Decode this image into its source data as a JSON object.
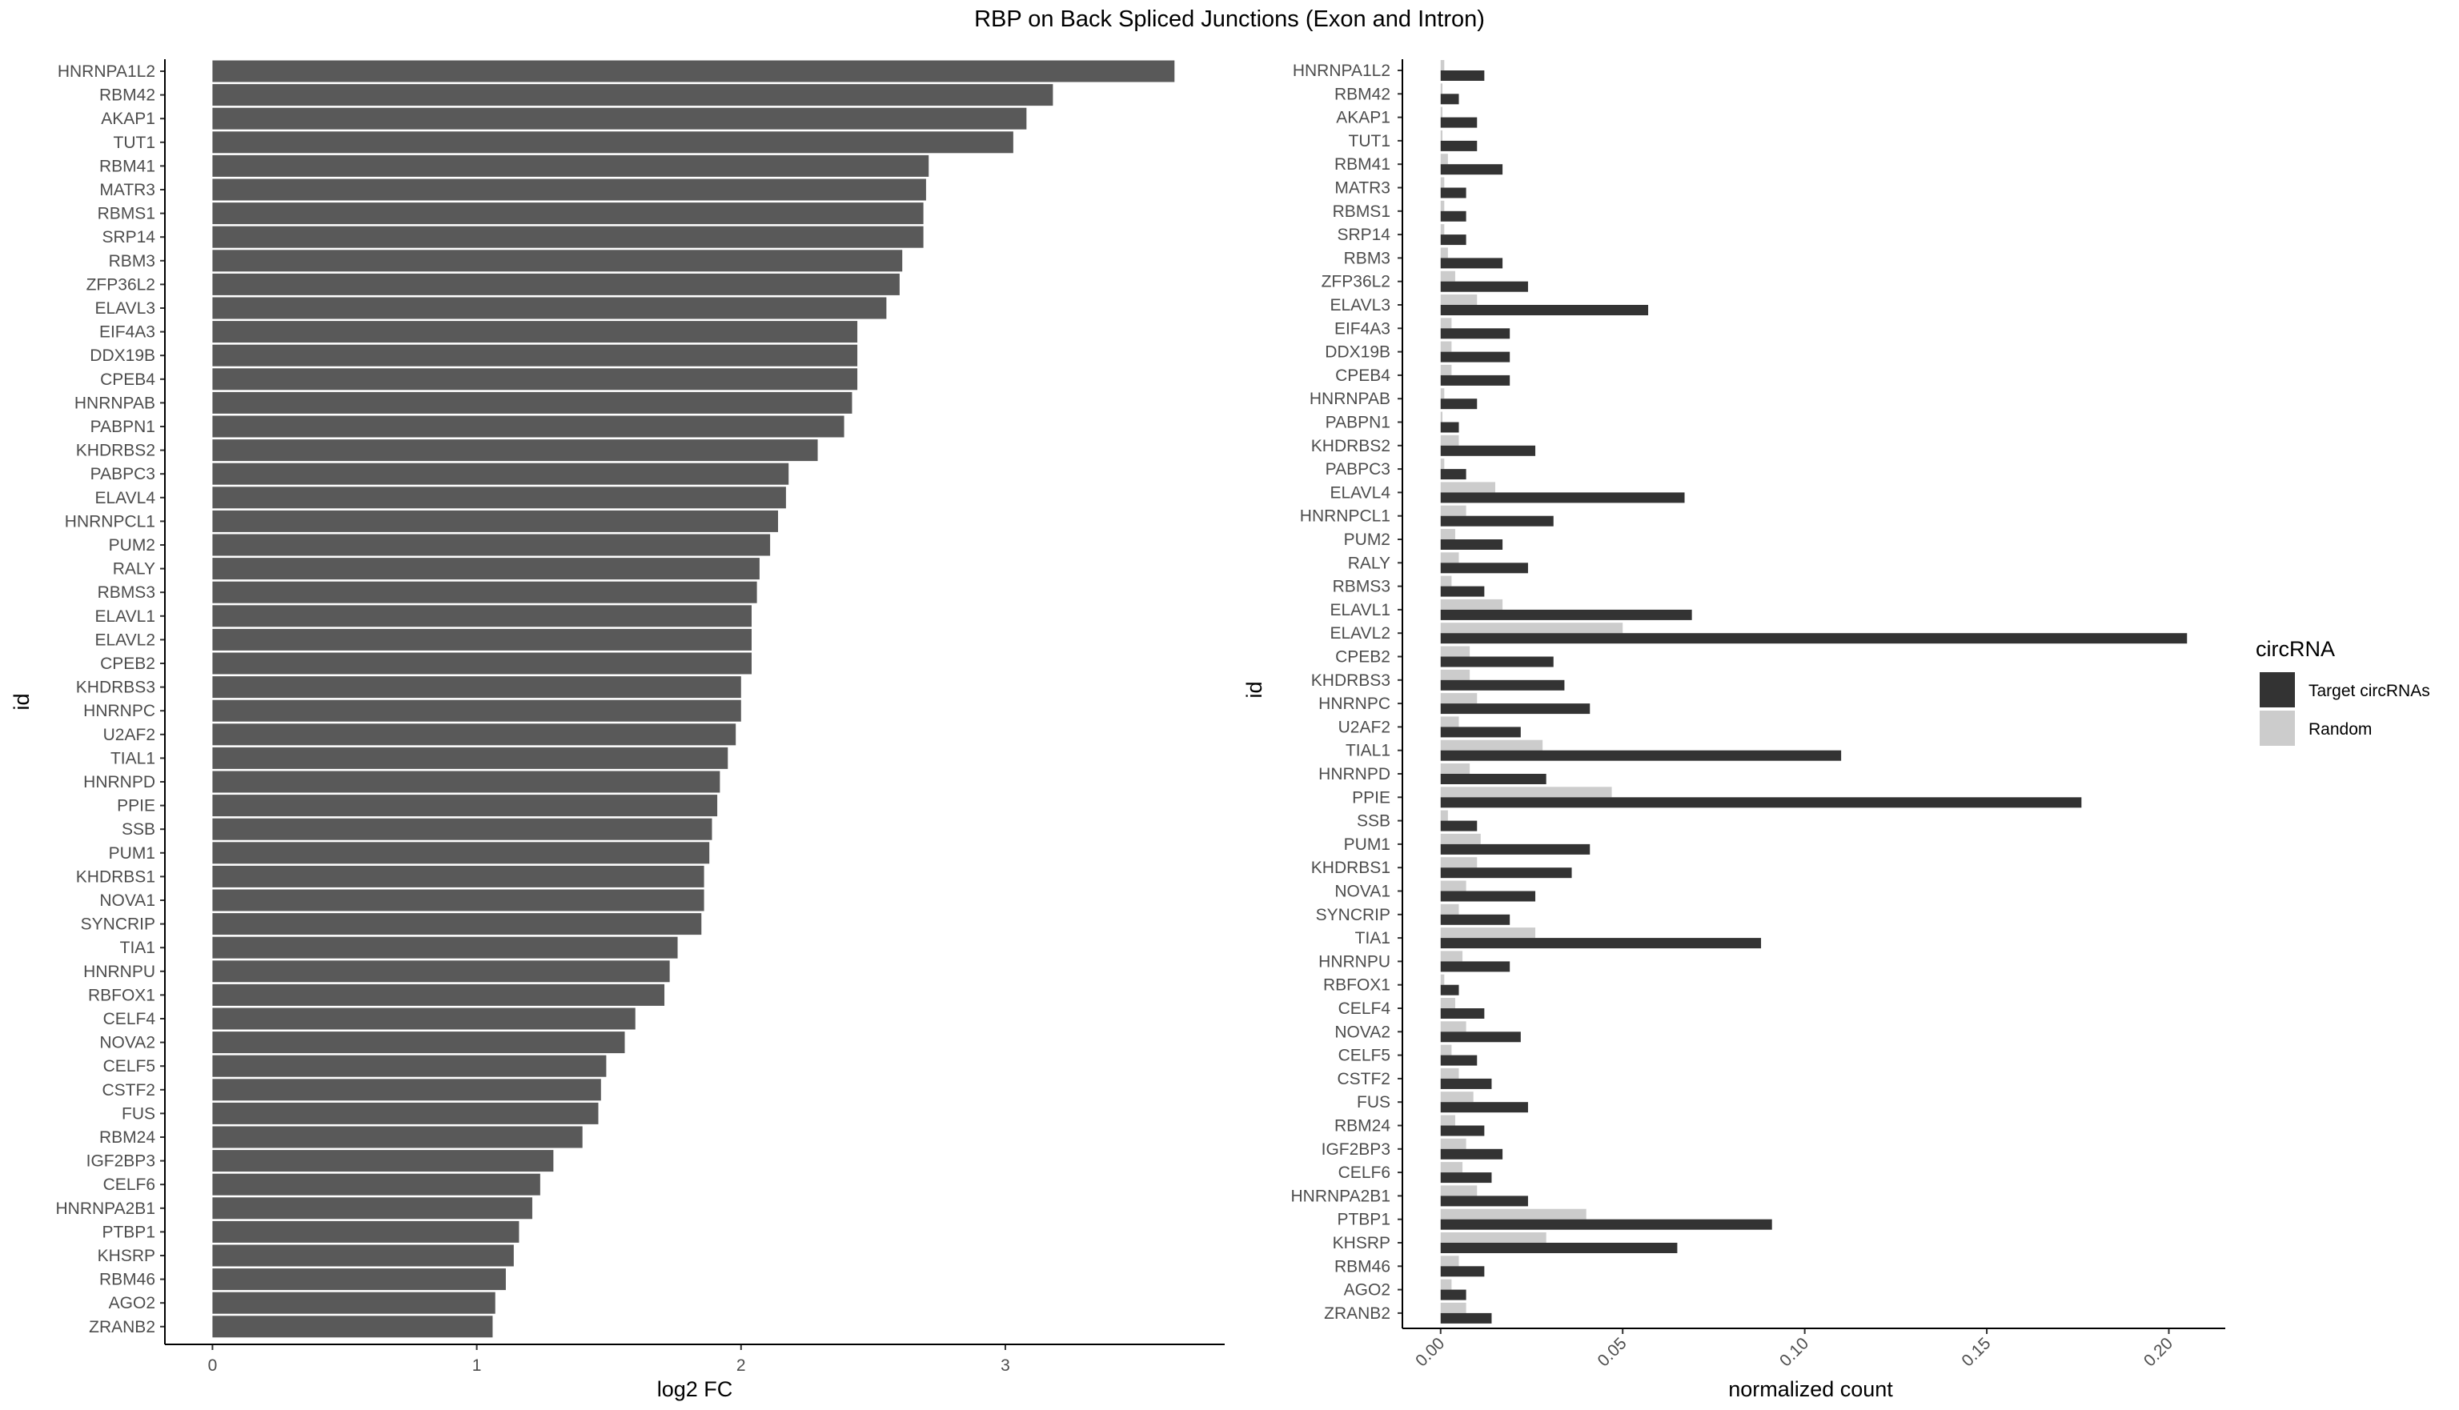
{
  "figure": {
    "title": "RBP on Back Spliced Junctions (Exon and Intron)"
  },
  "legend": {
    "title": "circRNA",
    "entries": [
      {
        "label": "Target circRNAs",
        "color": "#333333"
      },
      {
        "label": "Random",
        "color": "#cccccc"
      }
    ]
  },
  "chart_data": [
    {
      "type": "bar",
      "orientation": "horizontal",
      "xlabel": "log2 FC",
      "ylabel": "id",
      "xlim": [
        -0.18,
        3.83
      ],
      "xticks": [
        0,
        1,
        2,
        3
      ],
      "xtick_labels": [
        "0",
        "1",
        "2",
        "3"
      ],
      "bar_color": "#595959",
      "grid": false,
      "categories": [
        "HNRNPA1L2",
        "RBM42",
        "AKAP1",
        "TUT1",
        "RBM41",
        "MATR3",
        "RBMS1",
        "SRP14",
        "RBM3",
        "ZFP36L2",
        "ELAVL3",
        "EIF4A3",
        "DDX19B",
        "CPEB4",
        "HNRNPAB",
        "PABPN1",
        "KHDRBS2",
        "PABPC3",
        "ELAVL4",
        "HNRNPCL1",
        "PUM2",
        "RALY",
        "RBMS3",
        "ELAVL1",
        "ELAVL2",
        "CPEB2",
        "KHDRBS3",
        "HNRNPC",
        "U2AF2",
        "TIAL1",
        "HNRNPD",
        "PPIE",
        "SSB",
        "PUM1",
        "KHDRBS1",
        "NOVA1",
        "SYNCRIP",
        "TIA1",
        "HNRNPU",
        "RBFOX1",
        "CELF4",
        "NOVA2",
        "CELF5",
        "CSTF2",
        "FUS",
        "RBM24",
        "IGF2BP3",
        "CELF6",
        "HNRNPA2B1",
        "PTBP1",
        "KHSRP",
        "RBM46",
        "AGO2",
        "ZRANB2"
      ],
      "values": [
        3.64,
        3.18,
        3.08,
        3.03,
        2.71,
        2.7,
        2.69,
        2.69,
        2.61,
        2.6,
        2.55,
        2.44,
        2.44,
        2.44,
        2.42,
        2.39,
        2.29,
        2.18,
        2.17,
        2.14,
        2.11,
        2.07,
        2.06,
        2.04,
        2.04,
        2.04,
        2.0,
        2.0,
        1.98,
        1.95,
        1.92,
        1.91,
        1.89,
        1.88,
        1.86,
        1.86,
        1.85,
        1.76,
        1.73,
        1.71,
        1.6,
        1.56,
        1.49,
        1.47,
        1.46,
        1.4,
        1.29,
        1.24,
        1.21,
        1.16,
        1.14,
        1.11,
        1.07,
        1.06
      ]
    },
    {
      "type": "bar",
      "orientation": "horizontal",
      "grouped": true,
      "xlabel": "normalized count",
      "ylabel": "id",
      "xlim": [
        -0.0105,
        0.2155
      ],
      "xticks": [
        0.0,
        0.05,
        0.1,
        0.15,
        0.2
      ],
      "xtick_labels": [
        "0.00",
        "0.05",
        "0.10",
        "0.15",
        "0.20"
      ],
      "grid": false,
      "categories": [
        "HNRNPA1L2",
        "RBM42",
        "AKAP1",
        "TUT1",
        "RBM41",
        "MATR3",
        "RBMS1",
        "SRP14",
        "RBM3",
        "ZFP36L2",
        "ELAVL3",
        "EIF4A3",
        "DDX19B",
        "CPEB4",
        "HNRNPAB",
        "PABPN1",
        "KHDRBS2",
        "PABPC3",
        "ELAVL4",
        "HNRNPCL1",
        "PUM2",
        "RALY",
        "RBMS3",
        "ELAVL1",
        "ELAVL2",
        "CPEB2",
        "KHDRBS3",
        "HNRNPC",
        "U2AF2",
        "TIAL1",
        "HNRNPD",
        "PPIE",
        "SSB",
        "PUM1",
        "KHDRBS1",
        "NOVA1",
        "SYNCRIP",
        "TIA1",
        "HNRNPU",
        "RBFOX1",
        "CELF4",
        "NOVA2",
        "CELF5",
        "CSTF2",
        "FUS",
        "RBM24",
        "IGF2BP3",
        "CELF6",
        "HNRNPA2B1",
        "PTBP1",
        "KHSRP",
        "RBM46",
        "AGO2",
        "ZRANB2"
      ],
      "series": [
        {
          "name": "Target circRNAs",
          "color": "#333333",
          "values": [
            0.012,
            0.005,
            0.01,
            0.01,
            0.017,
            0.007,
            0.007,
            0.007,
            0.017,
            0.024,
            0.057,
            0.019,
            0.019,
            0.019,
            0.01,
            0.005,
            0.026,
            0.007,
            0.067,
            0.031,
            0.017,
            0.024,
            0.012,
            0.069,
            0.205,
            0.031,
            0.034,
            0.041,
            0.022,
            0.11,
            0.029,
            0.176,
            0.01,
            0.041,
            0.036,
            0.026,
            0.019,
            0.088,
            0.019,
            0.005,
            0.012,
            0.022,
            0.01,
            0.014,
            0.024,
            0.012,
            0.017,
            0.014,
            0.024,
            0.091,
            0.065,
            0.012,
            0.007,
            0.014
          ]
        },
        {
          "name": "Random",
          "color": "#cccccc",
          "values": [
            0.001,
            0.0005,
            0.0005,
            0.0005,
            0.002,
            0.001,
            0.001,
            0.001,
            0.002,
            0.004,
            0.01,
            0.003,
            0.003,
            0.003,
            0.001,
            0.0005,
            0.005,
            0.001,
            0.015,
            0.007,
            0.004,
            0.005,
            0.003,
            0.017,
            0.05,
            0.008,
            0.008,
            0.01,
            0.005,
            0.028,
            0.008,
            0.047,
            0.002,
            0.011,
            0.01,
            0.007,
            0.005,
            0.026,
            0.006,
            0.001,
            0.004,
            0.007,
            0.003,
            0.005,
            0.009,
            0.004,
            0.007,
            0.006,
            0.01,
            0.04,
            0.029,
            0.005,
            0.003,
            0.007
          ]
        }
      ]
    }
  ]
}
